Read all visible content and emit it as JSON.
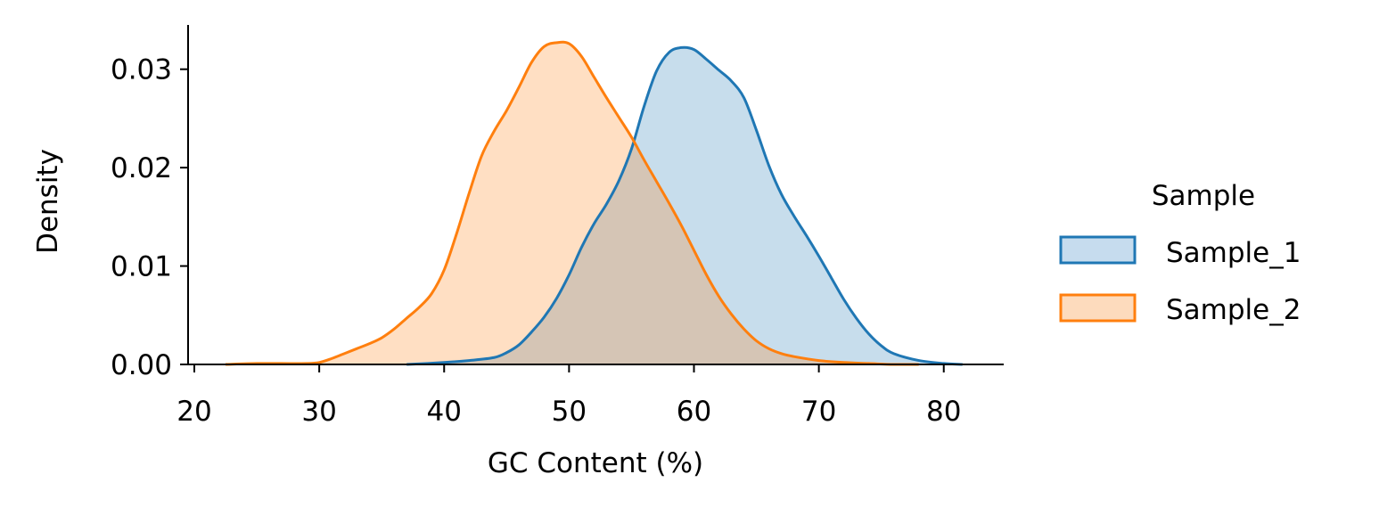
{
  "chart_data": {
    "type": "area",
    "xlabel": "GC Content (%)",
    "ylabel": "Density",
    "xlim": [
      19.5,
      84.8
    ],
    "ylim": [
      0,
      0.0345
    ],
    "xticks": [
      20,
      30,
      40,
      50,
      60,
      70,
      80
    ],
    "xtick_labels": [
      "20",
      "30",
      "40",
      "50",
      "60",
      "70",
      "80"
    ],
    "yticks": [
      0.0,
      0.01,
      0.02,
      0.03
    ],
    "ytick_labels": [
      "0.00",
      "0.01",
      "0.02",
      "0.03"
    ],
    "grid": false,
    "legend": {
      "title": "Sample",
      "position": "outside-right"
    },
    "series": [
      {
        "name": "Sample_1",
        "color": "#1f77b4",
        "fill": "#c6dcee",
        "x": [
          37,
          40,
          42,
          44,
          45,
          46,
          47,
          48,
          49,
          50,
          51,
          52,
          53,
          54,
          55,
          56,
          57,
          58,
          59,
          60,
          61,
          62,
          63,
          64,
          65,
          66,
          67,
          68,
          69,
          70,
          71,
          72,
          73,
          74,
          75,
          76,
          78,
          80,
          81.5
        ],
        "y": [
          0.0,
          0.0002,
          0.0004,
          0.0007,
          0.0012,
          0.002,
          0.0033,
          0.0048,
          0.0067,
          0.0091,
          0.0119,
          0.0143,
          0.0163,
          0.0187,
          0.0219,
          0.0262,
          0.0298,
          0.0317,
          0.0322,
          0.032,
          0.031,
          0.0299,
          0.0288,
          0.0271,
          0.0238,
          0.0202,
          0.0173,
          0.0151,
          0.0131,
          0.011,
          0.0088,
          0.0066,
          0.0047,
          0.0031,
          0.0019,
          0.0011,
          0.0004,
          0.0001,
          0.0
        ]
      },
      {
        "name": "Sample_2",
        "color": "#ff7f0e",
        "fill": "#fddbbd",
        "x": [
          22.5,
          25,
          27,
          29,
          30,
          31,
          32,
          33,
          34,
          35,
          36,
          37,
          38,
          39,
          40,
          41,
          42,
          43,
          44,
          45,
          46,
          47,
          48,
          49,
          50,
          51,
          52,
          53,
          54,
          55,
          56,
          57,
          58,
          59,
          60,
          61,
          62,
          63,
          64,
          65,
          66,
          67,
          68,
          70,
          72,
          74,
          76,
          78
        ],
        "y": [
          0.0,
          0.0001,
          0.0001,
          0.0001,
          0.0002,
          0.0006,
          0.0011,
          0.0016,
          0.0021,
          0.0027,
          0.0036,
          0.0047,
          0.0058,
          0.0072,
          0.0096,
          0.0133,
          0.0174,
          0.0212,
          0.0237,
          0.0258,
          0.0282,
          0.0307,
          0.0323,
          0.0327,
          0.0326,
          0.0313,
          0.0292,
          0.0271,
          0.0251,
          0.0231,
          0.0208,
          0.0186,
          0.0164,
          0.0141,
          0.0116,
          0.0091,
          0.0069,
          0.0051,
          0.0036,
          0.0024,
          0.0016,
          0.0011,
          0.0008,
          0.0004,
          0.0002,
          0.0001,
          0.0,
          0.0
        ]
      }
    ]
  }
}
